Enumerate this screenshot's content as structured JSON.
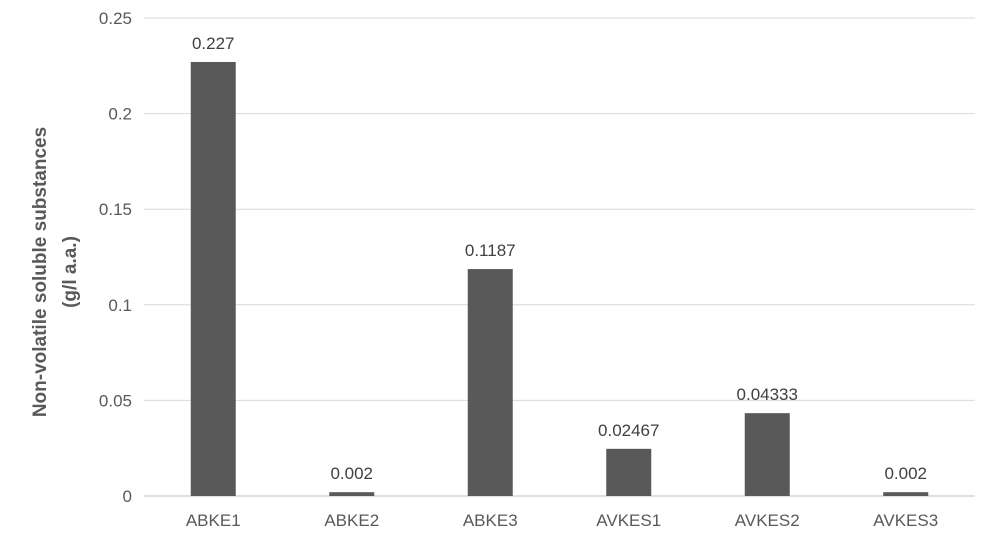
{
  "chart_data": {
    "type": "bar",
    "categories": [
      "ABKE1",
      "ABKE2",
      "ABKE3",
      "AVKES1",
      "AVKES2",
      "AVKES3"
    ],
    "values": [
      0.227,
      0.002,
      0.1187,
      0.02467,
      0.04333,
      0.002
    ],
    "data_labels": [
      "0.227",
      "0.002",
      "0.1187",
      "0.02467",
      "0.04333",
      "0.002"
    ],
    "title": "",
    "xlabel": "",
    "ylabel_lines": [
      "Non-volatile soluble substances",
      "(g/l a.a.)"
    ],
    "ylim": [
      0,
      0.25
    ],
    "yticks": [
      0,
      0.05,
      0.1,
      0.15,
      0.2,
      0.25
    ],
    "ytick_labels": [
      "0",
      "0.05",
      "0.1",
      "0.15",
      "0.2",
      "0.25"
    ],
    "grid": true,
    "legend": "none",
    "bar_color": "#595959"
  }
}
